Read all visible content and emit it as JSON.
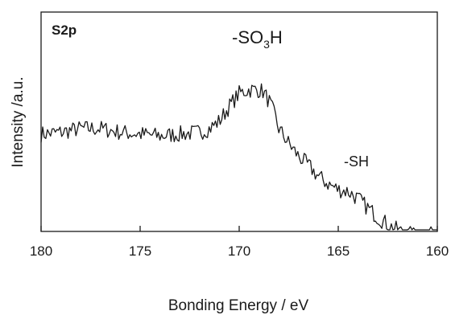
{
  "chart_data": {
    "type": "line",
    "panel_label": "S2p",
    "xlabel": "Bonding Energy / eV",
    "ylabel": "Intensity /a.u.",
    "xlim": [
      180,
      160
    ],
    "ylim": [
      0,
      1
    ],
    "x_reversed": true,
    "x_ticks": [
      180,
      175,
      170,
      165,
      160
    ],
    "x_tick_labels": [
      "180",
      "175",
      "170",
      "165",
      "160"
    ],
    "y_ticks_shown": false,
    "grid": false,
    "annotations": [
      {
        "text_pre": "-SO",
        "text_sub": "3",
        "text_post": "H",
        "x": 169.4,
        "y": 0.86
      },
      {
        "text": "-SH",
        "x": 164.3,
        "y": 0.34
      }
    ],
    "series": [
      {
        "values": [
          {
            "x": 180.0,
            "y": 0.57
          },
          {
            "x": 179.0,
            "y": 0.58
          },
          {
            "x": 178.0,
            "y": 0.6
          },
          {
            "x": 177.0,
            "y": 0.6
          },
          {
            "x": 176.0,
            "y": 0.58
          },
          {
            "x": 175.0,
            "y": 0.57
          },
          {
            "x": 174.0,
            "y": 0.56
          },
          {
            "x": 173.0,
            "y": 0.57
          },
          {
            "x": 172.0,
            "y": 0.58
          },
          {
            "x": 171.5,
            "y": 0.6
          },
          {
            "x": 171.0,
            "y": 0.64
          },
          {
            "x": 170.5,
            "y": 0.72
          },
          {
            "x": 170.0,
            "y": 0.79
          },
          {
            "x": 169.5,
            "y": 0.81
          },
          {
            "x": 169.0,
            "y": 0.81
          },
          {
            "x": 168.8,
            "y": 0.8
          },
          {
            "x": 168.5,
            "y": 0.75
          },
          {
            "x": 168.2,
            "y": 0.67
          },
          {
            "x": 168.0,
            "y": 0.6
          },
          {
            "x": 167.5,
            "y": 0.52
          },
          {
            "x": 167.0,
            "y": 0.45
          },
          {
            "x": 166.5,
            "y": 0.4
          },
          {
            "x": 166.0,
            "y": 0.34
          },
          {
            "x": 165.5,
            "y": 0.3
          },
          {
            "x": 165.0,
            "y": 0.27
          },
          {
            "x": 164.5,
            "y": 0.26
          },
          {
            "x": 164.0,
            "y": 0.22
          },
          {
            "x": 163.5,
            "y": 0.17
          },
          {
            "x": 163.0,
            "y": 0.12
          },
          {
            "x": 162.5,
            "y": 0.08
          },
          {
            "x": 162.0,
            "y": 0.05
          },
          {
            "x": 161.5,
            "y": 0.03
          },
          {
            "x": 161.0,
            "y": 0.02
          },
          {
            "x": 160.5,
            "y": 0.02
          },
          {
            "x": 160.0,
            "y": 0.03
          }
        ]
      }
    ]
  }
}
